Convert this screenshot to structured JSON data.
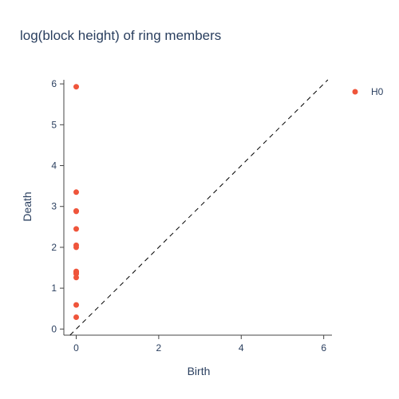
{
  "chart_data": {
    "type": "scatter",
    "title": "log(block height) of ring members",
    "xlabel": "Birth",
    "ylabel": "Death",
    "xlim": [
      -0.3,
      6.2
    ],
    "ylim": [
      -0.15,
      6.1
    ],
    "x_ticks": [
      0,
      2,
      4,
      6
    ],
    "y_ticks": [
      0,
      1,
      2,
      3,
      4,
      5,
      6
    ],
    "grid": false,
    "legend_position": "top-right",
    "diagonal_line": true,
    "series": [
      {
        "name": "H0",
        "color": "#EF553B",
        "x": [
          0,
          0,
          0,
          0,
          0,
          0,
          0,
          0,
          0,
          0,
          0,
          0,
          0,
          0
        ],
        "y": [
          0.29,
          0.59,
          1.26,
          1.35,
          1.41,
          2.0,
          2.05,
          2.45,
          2.88,
          2.89,
          3.35,
          5.93,
          1.39,
          1.38
        ]
      }
    ]
  }
}
